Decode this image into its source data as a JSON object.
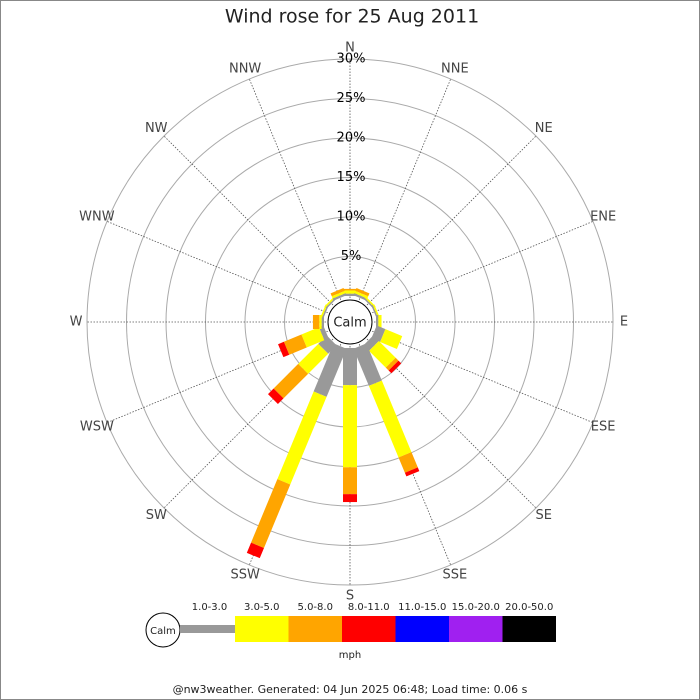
{
  "chart_data": {
    "type": "windrose",
    "title": "Wind rose for 25 Aug 2011",
    "categories": [
      "N",
      "NNE",
      "NE",
      "ENE",
      "E",
      "ESE",
      "SE",
      "SSE",
      "S",
      "SSW",
      "SW",
      "WSW",
      "W",
      "WNW",
      "NW",
      "NNW"
    ],
    "rlim": [
      0,
      30
    ],
    "rticks": [
      {
        "value": 5,
        "label": "5%"
      },
      {
        "value": 10,
        "label": "10%"
      },
      {
        "value": 15,
        "label": "15%"
      },
      {
        "value": 20,
        "label": "20%"
      },
      {
        "value": 25,
        "label": "25%"
      },
      {
        "value": 30,
        "label": "30%"
      }
    ],
    "grid": true,
    "center_label": "Calm",
    "legend_unit": "mph",
    "series": [
      {
        "name": "1.0-3.0",
        "color": "#999999",
        "values": [
          0.3,
          0.3,
          0.2,
          0.2,
          0.3,
          1.2,
          1.0,
          5.1,
          4.7,
          6.6,
          1.5,
          0.6,
          0.3,
          0.2,
          0.2,
          0.3
        ]
      },
      {
        "name": "3.0-5.0",
        "color": "#ffff00",
        "values": [
          0.4,
          0.3,
          0.2,
          0.2,
          0.4,
          2.3,
          3.0,
          9.8,
          10.4,
          12.0,
          3.6,
          2.4,
          0.3,
          0.2,
          0.2,
          0.3
        ]
      },
      {
        "name": "5.0-8.0",
        "color": "#ffa500",
        "values": [
          0.2,
          0.4,
          0,
          0,
          0,
          0,
          0.5,
          2.1,
          3.4,
          8.7,
          4.4,
          2.4,
          0.8,
          0,
          0,
          0.4
        ]
      },
      {
        "name": "8.0-11.0",
        "color": "#ff0000",
        "values": [
          0,
          0,
          0,
          0,
          0,
          0,
          0.5,
          0.5,
          1.0,
          1.4,
          1.0,
          0.8,
          0,
          0,
          0,
          0
        ]
      },
      {
        "name": "11.0-15.0",
        "color": "#0000ff",
        "values": [
          0,
          0,
          0,
          0,
          0,
          0,
          0,
          0,
          0,
          0,
          0,
          0,
          0,
          0,
          0,
          0
        ]
      },
      {
        "name": "15.0-20.0",
        "color": "#a020f0",
        "values": [
          0,
          0,
          0,
          0,
          0,
          0,
          0,
          0,
          0,
          0,
          0,
          0,
          0,
          0,
          0,
          0
        ]
      },
      {
        "name": "20.0-50.0",
        "color": "#000000",
        "values": [
          0,
          0,
          0,
          0,
          0,
          0,
          0,
          0,
          0,
          0,
          0,
          0,
          0,
          0,
          0,
          0
        ]
      }
    ],
    "footer": "@nw3weather. Generated: 04 Jun 2025 06:48; Load time: 0.06 s"
  }
}
